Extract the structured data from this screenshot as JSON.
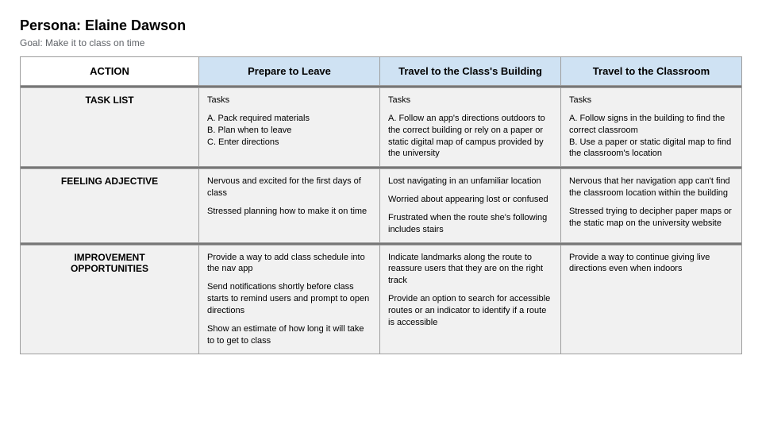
{
  "title": "Persona: Elaine Dawson",
  "subtitle": "Goal: Make it to class on time",
  "colors": {
    "phase_header_bg": "#cfe2f3",
    "body_cell_bg": "#f1f1f1",
    "divider_bg": "#777777",
    "border": "#9e9e9e",
    "subtitle": "#5f6368"
  },
  "headers": {
    "action": "ACTION",
    "phases": [
      "Prepare to Leave",
      "Travel to the Class's Building",
      "Travel to the Classroom"
    ]
  },
  "rows": [
    {
      "label": "TASK LIST",
      "cells": [
        [
          "Tasks",
          "A. Pack required materials\nB. Plan when to leave\nC. Enter directions"
        ],
        [
          "Tasks",
          "A. Follow an app's directions outdoors to the correct building or rely on a paper or static digital map of campus provided by the university"
        ],
        [
          "Tasks",
          "A. Follow signs in the building to find the correct classroom\nB. Use a paper or static digital map to find the classroom's location"
        ]
      ]
    },
    {
      "label": "FEELING ADJECTIVE",
      "cells": [
        [
          "Nervous and excited for the first days of class",
          "Stressed planning how to make it on time"
        ],
        [
          "Lost navigating in an unfamiliar location",
          "Worried about appearing lost or confused",
          "Frustrated when the route she's following includes stairs"
        ],
        [
          "Nervous that her navigation app can't find the classroom location within the building",
          "Stressed trying to decipher paper maps or the static map on the university website"
        ]
      ]
    },
    {
      "label": "IMPROVEMENT OPPORTUNITIES",
      "cells": [
        [
          "Provide a way to add class schedule into the nav app",
          "Send notifications shortly before class starts to remind users and prompt to open directions",
          "Show an estimate of how long it will take to to get to class"
        ],
        [
          "Indicate landmarks along the route to reassure users that they are on the right track",
          "Provide an option to search for accessible routes or an indicator to identify if a route is accessible"
        ],
        [
          "Provide a way to continue giving live directions even when indoors"
        ]
      ]
    }
  ]
}
